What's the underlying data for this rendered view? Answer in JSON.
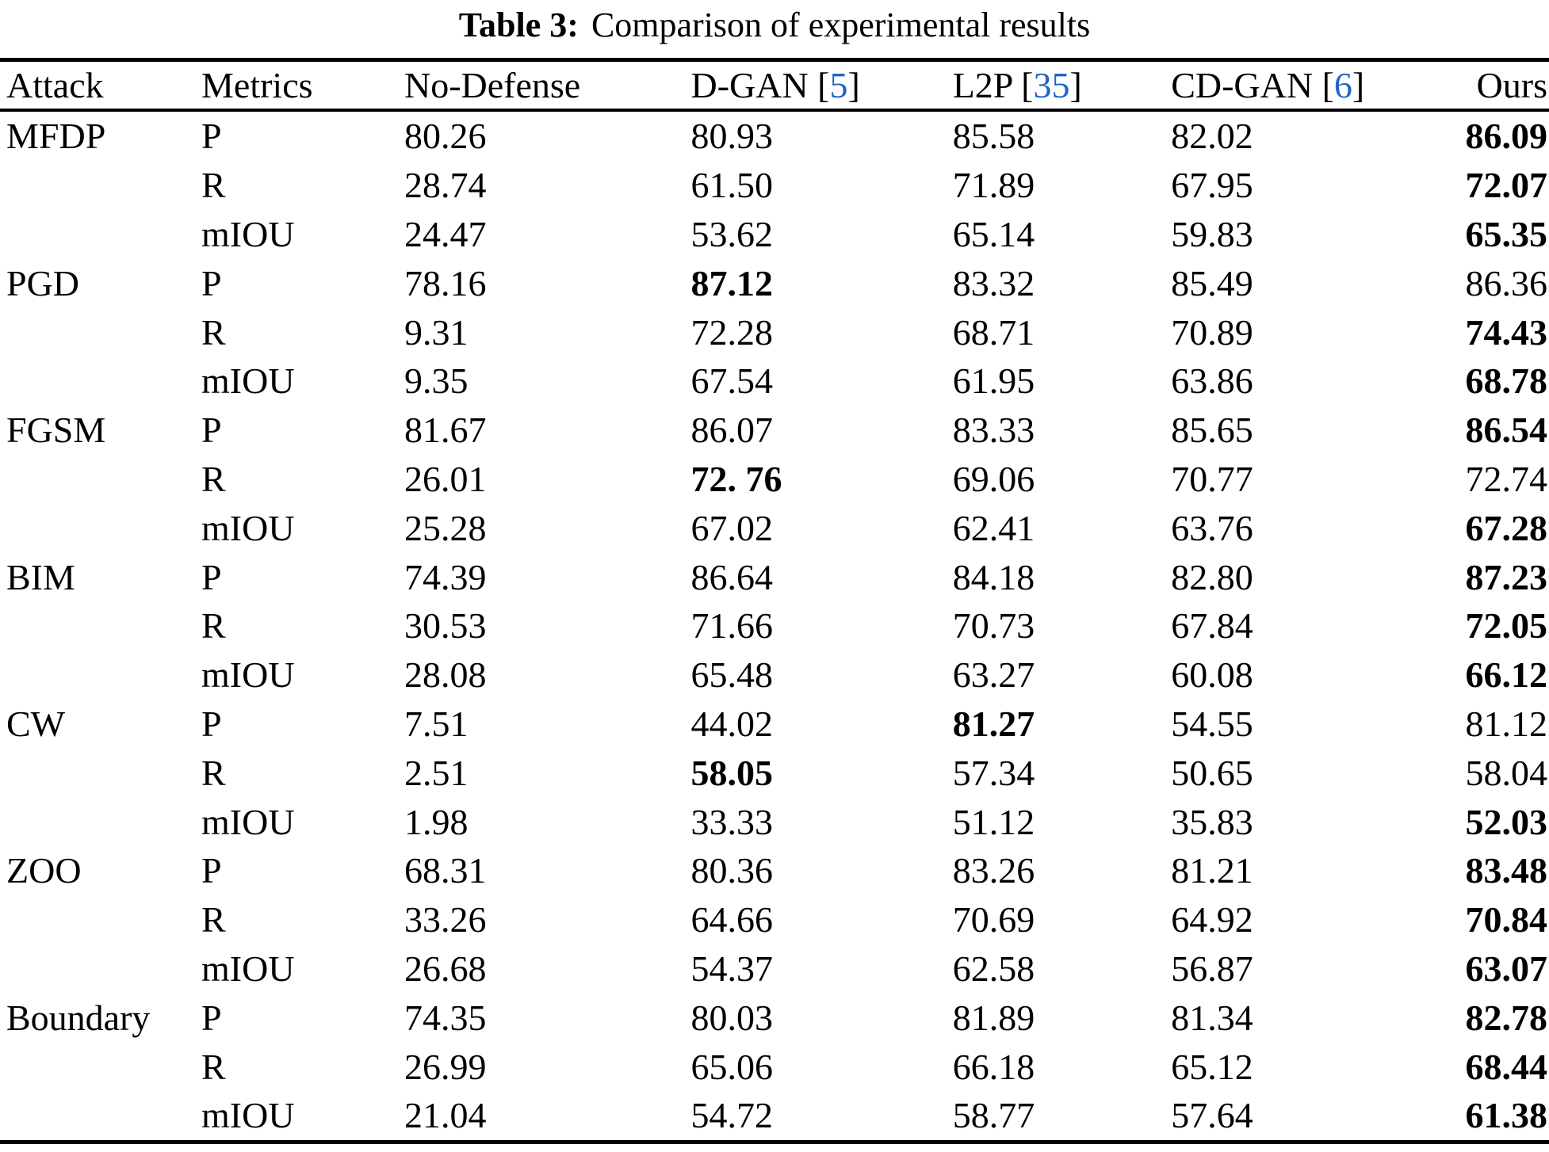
{
  "caption": {
    "label": "Table 3:",
    "text": "Comparison of experimental results"
  },
  "colors": {
    "text": "#000000",
    "background": "#ffffff",
    "citation": "#1f64c8",
    "rule": "#000000"
  },
  "table": {
    "columns": [
      {
        "label": "Attack"
      },
      {
        "label": "Metrics"
      },
      {
        "label": "No-Defense"
      },
      {
        "label": "D-GAN",
        "citation": "5"
      },
      {
        "label": "L2P",
        "citation": "35"
      },
      {
        "label": "CD-GAN",
        "citation": "6"
      },
      {
        "label": "Ours"
      }
    ],
    "column_widths_pct": [
      13.0,
      13.1,
      18.5,
      16.9,
      14.1,
      18.8,
      5.6
    ],
    "rows": [
      {
        "attack": "MFDP",
        "metric": "P",
        "values": [
          {
            "text": "80.26"
          },
          {
            "text": "80.93"
          },
          {
            "text": "85.58"
          },
          {
            "text": "82.02"
          },
          {
            "text": "86.09",
            "bold": true
          }
        ]
      },
      {
        "attack": "",
        "metric": "R",
        "values": [
          {
            "text": "28.74"
          },
          {
            "text": "61.50"
          },
          {
            "text": "71.89"
          },
          {
            "text": "67.95"
          },
          {
            "text": "72.07",
            "bold": true
          }
        ]
      },
      {
        "attack": "",
        "metric": "mIOU",
        "values": [
          {
            "text": "24.47"
          },
          {
            "text": "53.62"
          },
          {
            "text": "65.14"
          },
          {
            "text": "59.83"
          },
          {
            "text": "65.35",
            "bold": true
          }
        ]
      },
      {
        "attack": "PGD",
        "metric": "P",
        "values": [
          {
            "text": "78.16"
          },
          {
            "text": "87.12",
            "bold": true
          },
          {
            "text": "83.32"
          },
          {
            "text": "85.49"
          },
          {
            "text": "86.36"
          }
        ]
      },
      {
        "attack": "",
        "metric": "R",
        "values": [
          {
            "text": "9.31"
          },
          {
            "text": "72.28"
          },
          {
            "text": "68.71"
          },
          {
            "text": "70.89"
          },
          {
            "text": "74.43",
            "bold": true
          }
        ]
      },
      {
        "attack": "",
        "metric": "mIOU",
        "values": [
          {
            "text": "9.35"
          },
          {
            "text": "67.54"
          },
          {
            "text": "61.95"
          },
          {
            "text": "63.86"
          },
          {
            "text": "68.78",
            "bold": true
          }
        ]
      },
      {
        "attack": "FGSM",
        "metric": "P",
        "values": [
          {
            "text": "81.67"
          },
          {
            "text": "86.07"
          },
          {
            "text": "83.33"
          },
          {
            "text": "85.65"
          },
          {
            "text": "86.54",
            "bold": true
          }
        ]
      },
      {
        "attack": "",
        "metric": "R",
        "values": [
          {
            "text": "26.01"
          },
          {
            "text": "72. 76",
            "bold": true
          },
          {
            "text": "69.06"
          },
          {
            "text": "70.77"
          },
          {
            "text": "72.74"
          }
        ]
      },
      {
        "attack": "",
        "metric": "mIOU",
        "values": [
          {
            "text": "25.28"
          },
          {
            "text": "67.02"
          },
          {
            "text": "62.41"
          },
          {
            "text": "63.76"
          },
          {
            "text": "67.28",
            "bold": true
          }
        ]
      },
      {
        "attack": "BIM",
        "metric": "P",
        "values": [
          {
            "text": "74.39"
          },
          {
            "text": "86.64"
          },
          {
            "text": "84.18"
          },
          {
            "text": "82.80"
          },
          {
            "text": "87.23",
            "bold": true
          }
        ]
      },
      {
        "attack": "",
        "metric": "R",
        "values": [
          {
            "text": "30.53"
          },
          {
            "text": "71.66"
          },
          {
            "text": "70.73"
          },
          {
            "text": "67.84"
          },
          {
            "text": "72.05",
            "bold": true
          }
        ]
      },
      {
        "attack": "",
        "metric": "mIOU",
        "values": [
          {
            "text": "28.08"
          },
          {
            "text": "65.48"
          },
          {
            "text": "63.27"
          },
          {
            "text": "60.08"
          },
          {
            "text": "66.12",
            "bold": true
          }
        ]
      },
      {
        "attack": "CW",
        "metric": "P",
        "values": [
          {
            "text": "7.51"
          },
          {
            "text": "44.02"
          },
          {
            "text": "81.27",
            "bold": true
          },
          {
            "text": "54.55"
          },
          {
            "text": "81.12"
          }
        ]
      },
      {
        "attack": "",
        "metric": "R",
        "values": [
          {
            "text": "2.51"
          },
          {
            "text": "58.05",
            "bold": true
          },
          {
            "text": "57.34"
          },
          {
            "text": "50.65"
          },
          {
            "text": "58.04"
          }
        ]
      },
      {
        "attack": "",
        "metric": "mIOU",
        "values": [
          {
            "text": "1.98"
          },
          {
            "text": "33.33"
          },
          {
            "text": "51.12"
          },
          {
            "text": "35.83"
          },
          {
            "text": "52.03",
            "bold": true
          }
        ]
      },
      {
        "attack": "ZOO",
        "metric": "P",
        "values": [
          {
            "text": "68.31"
          },
          {
            "text": "80.36"
          },
          {
            "text": "83.26"
          },
          {
            "text": "81.21"
          },
          {
            "text": "83.48",
            "bold": true
          }
        ]
      },
      {
        "attack": "",
        "metric": "R",
        "values": [
          {
            "text": "33.26"
          },
          {
            "text": "64.66"
          },
          {
            "text": "70.69"
          },
          {
            "text": "64.92"
          },
          {
            "text": "70.84",
            "bold": true
          }
        ]
      },
      {
        "attack": "",
        "metric": "mIOU",
        "values": [
          {
            "text": "26.68"
          },
          {
            "text": "54.37"
          },
          {
            "text": "62.58"
          },
          {
            "text": "56.87"
          },
          {
            "text": "63.07",
            "bold": true
          }
        ]
      },
      {
        "attack": "Boundary",
        "metric": "P",
        "values": [
          {
            "text": "74.35"
          },
          {
            "text": "80.03"
          },
          {
            "text": "81.89"
          },
          {
            "text": "81.34"
          },
          {
            "text": "82.78",
            "bold": true
          }
        ]
      },
      {
        "attack": "",
        "metric": "R",
        "values": [
          {
            "text": "26.99"
          },
          {
            "text": "65.06"
          },
          {
            "text": "66.18"
          },
          {
            "text": "65.12"
          },
          {
            "text": "68.44",
            "bold": true
          }
        ]
      },
      {
        "attack": "",
        "metric": "mIOU",
        "values": [
          {
            "text": "21.04"
          },
          {
            "text": "54.72"
          },
          {
            "text": "58.77"
          },
          {
            "text": "57.64"
          },
          {
            "text": "61.38",
            "bold": true
          }
        ]
      }
    ]
  }
}
